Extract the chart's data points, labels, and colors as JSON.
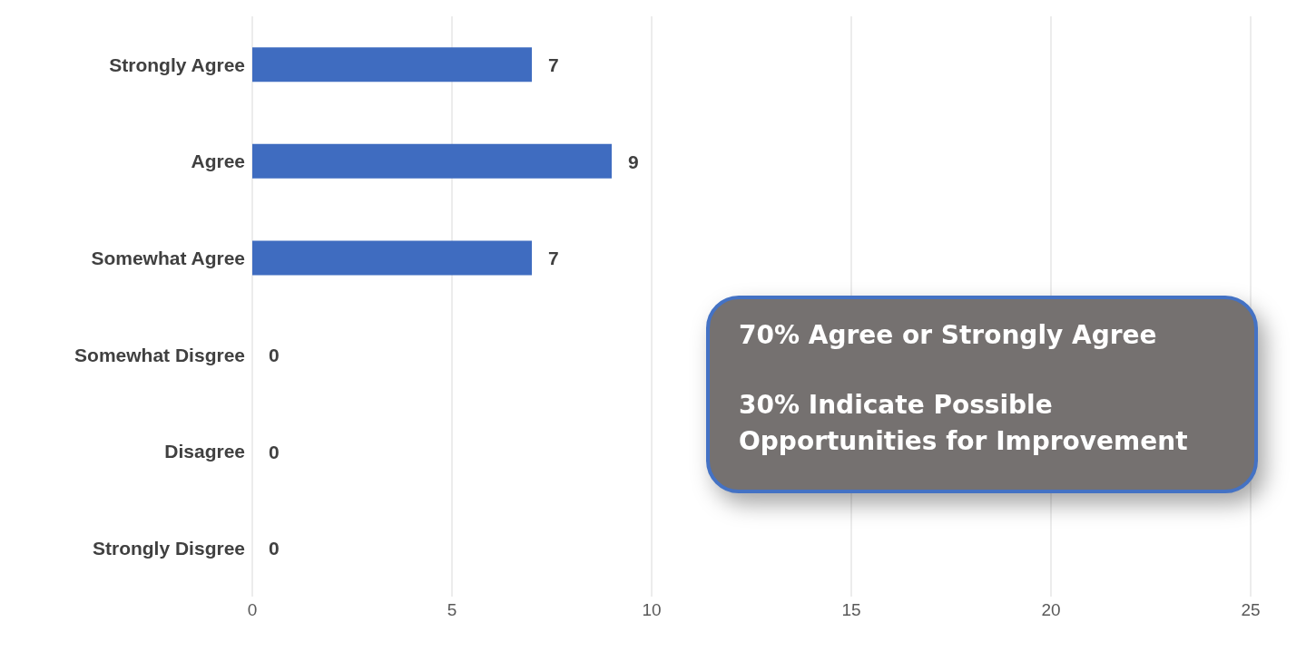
{
  "chart_data": {
    "type": "bar",
    "orientation": "horizontal",
    "categories": [
      "Strongly Agree",
      "Agree",
      "Somewhat Agree",
      "Somewhat Disgree",
      "Disagree",
      "Strongly Disgree"
    ],
    "values": [
      7,
      9,
      7,
      0,
      0,
      0
    ],
    "color": "#3f6cc0",
    "xlim": [
      0,
      25
    ],
    "xticks": [
      0,
      5,
      10,
      15,
      20,
      25
    ],
    "grid": "x",
    "data_labels": true,
    "legend": false,
    "annotations": [
      "70% Agree or Strongly Agree",
      "30% Indicate Possible Opportunities for Improvement"
    ]
  }
}
